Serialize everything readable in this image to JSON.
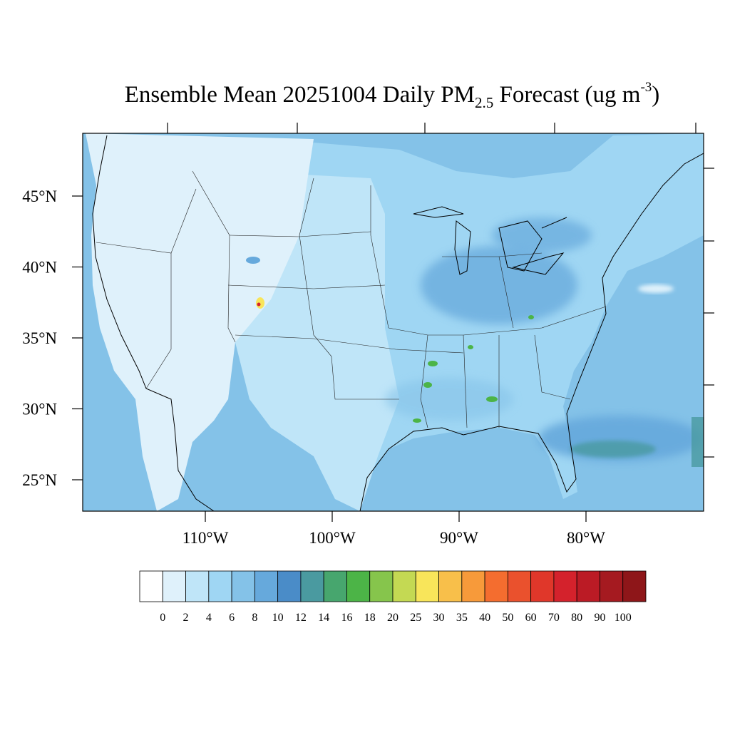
{
  "title": {
    "main": "Ensemble Mean 20251004 Daily PM",
    "sub": "2.5",
    "mid": " Forecast (ug m",
    "sup": "-3",
    "end": ")"
  },
  "lat_ticks": [
    {
      "value": 45,
      "label": "45°N"
    },
    {
      "value": 40,
      "label": "40°N"
    },
    {
      "value": 35,
      "label": "35°N"
    },
    {
      "value": 30,
      "label": "30°N"
    },
    {
      "value": 25,
      "label": "25°N"
    }
  ],
  "lon_ticks": [
    {
      "value": -110,
      "label": "110°W"
    },
    {
      "value": -100,
      "label": "100°W"
    },
    {
      "value": -90,
      "label": "90°W"
    },
    {
      "value": -80,
      "label": "80°W"
    }
  ],
  "colorbar": {
    "labels": [
      "0",
      "2",
      "4",
      "6",
      "8",
      "10",
      "12",
      "14",
      "16",
      "18",
      "20",
      "25",
      "30",
      "35",
      "40",
      "50",
      "60",
      "70",
      "80",
      "90",
      "100"
    ],
    "colors": [
      "#ffffff",
      "#dff1fb",
      "#bfe5f8",
      "#9fd6f3",
      "#84c2e8",
      "#66a9dc",
      "#4a8cc8",
      "#4a9aa0",
      "#47a66e",
      "#4cb447",
      "#86c54c",
      "#c4d953",
      "#f8e55a",
      "#f8bf4a",
      "#f79a3a",
      "#f46d2f",
      "#ea512d",
      "#e0372a",
      "#d4222c",
      "#bb1b25",
      "#a51a20",
      "#8e1619"
    ]
  },
  "map_colors": {
    "ocean_pacific": "#84c2e8",
    "ocean_atlantic": "#84c2e8",
    "west_land": "#dff1fb",
    "plains": "#bfe5f8",
    "east_land": "#9fd6f3",
    "ohio_valley": "#66a9dc",
    "gulf_plume": "#66a9dc",
    "hotspot_green": "#4cb447",
    "hotspot_yellow": "#f8e55a",
    "hotspot_red": "#d4222c"
  }
}
